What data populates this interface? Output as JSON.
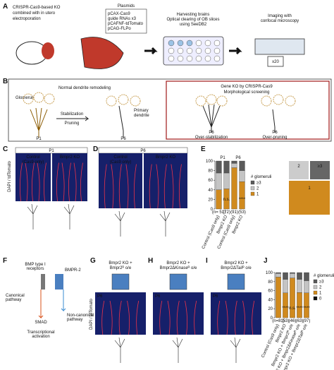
{
  "figure": {
    "A": {
      "label": "A",
      "caption": [
        "CRISPR-Cas9-based KO",
        "combined with in utero",
        "electroporation"
      ],
      "plasmids_title": "Plasmids",
      "plasmids": [
        "pCAX-Cas9",
        "guide RNAs x3",
        "pCAFNF-tdTomato",
        "pCAG-FLPo"
      ],
      "harvest": [
        "Harvesting brains",
        "Optical clearing of OB slices",
        "using SeeDB2"
      ],
      "imaging": [
        "Imaging with",
        "confocal microscopy"
      ],
      "objective": "x20"
    },
    "B": {
      "label": "B",
      "normal": "Normal dendrite remodeling",
      "glomeruli": "Glomeruli",
      "stabilization": "Stabilization",
      "pruning": "Pruning",
      "primary": [
        "Primary",
        "dendrite"
      ],
      "p1": "P1",
      "p6": "P6",
      "screen": [
        "Gene KO by CRISPR-Cas9",
        "Morphological screening"
      ],
      "stab_stage": "P6",
      "stab": "Over-stabilization",
      "prune_stage": "P6",
      "prune": "Over-pruning"
    },
    "C": {
      "label": "C",
      "stage": "P1",
      "control": [
        "Control",
        "(Cas9 only)"
      ],
      "ko": "Bmpr2 KO",
      "stain": "DAPI / tdTomato"
    },
    "D": {
      "label": "D",
      "stage": "P6",
      "control": [
        "Control",
        "(Cas9 only)"
      ],
      "ko": "Bmpr2 KO"
    },
    "E": {
      "label": "E",
      "schematic": [
        "2",
        "≥3",
        "1"
      ]
    },
    "F": {
      "label": "F",
      "receptors": [
        "BMP type I",
        "receptors"
      ],
      "bmpr2": "BMPR-2",
      "canonical": [
        "Canonical",
        "pathway"
      ],
      "noncanonical": [
        "Non-canonical",
        "pathway"
      ],
      "smad": "SMAD",
      "transcription": [
        "Transcriptional",
        "activation"
      ]
    },
    "G": {
      "label": "G",
      "title": [
        "Bmpr2 KO +",
        "Bmpr2ᴿ o/e"
      ],
      "stage": "P6",
      "stain": "DAPI / tdTomato"
    },
    "H": {
      "label": "H",
      "title": [
        "Bmpr2 KO +",
        "Bmpr2ΔKinaseᴿ o/e"
      ],
      "stage": "P6"
    },
    "I": {
      "label": "I",
      "title": [
        "Bmpr2 KO +",
        "Bmpr2ΔTailᴿ o/e"
      ],
      "stage": "P6"
    },
    "J": {
      "label": "J"
    }
  },
  "chart_data": [
    {
      "type": "bar",
      "stacked": true,
      "ylim": [
        0,
        100
      ],
      "yticks": [
        0,
        20,
        40,
        60,
        80,
        100
      ],
      "groups": [
        "P1",
        "P6"
      ],
      "categories": [
        "Control (Cas9 only)",
        "Bmpr2 KO",
        "Control (Cas9 only)",
        "Bmpr2 KO"
      ],
      "n_labels": [
        "(n= 51)",
        "(72)",
        "(91)",
        "(53)"
      ],
      "legend_title": "# glomeruli",
      "series": [
        {
          "name": "1",
          "color": "#d08a1e",
          "values": [
            40,
            42,
            86,
            57
          ]
        },
        {
          "name": "2",
          "color": "#c4c4c4",
          "values": [
            35,
            33,
            9,
            23
          ]
        },
        {
          "name": "≥3",
          "color": "#5a5a5a",
          "values": [
            25,
            25,
            5,
            20
          ]
        }
      ],
      "annotations": [
        "n.s.",
        "****"
      ]
    },
    {
      "type": "bar",
      "stacked": true,
      "ylim": [
        0,
        100
      ],
      "yticks": [
        0,
        20,
        40,
        60,
        80,
        100
      ],
      "categories": [
        "Control (Cas9 only)",
        "Bmpr2 KO",
        "Bmpr2 KO + Bmpr2ᴿ o/e",
        "Bmpr2 KO + Bmpr2ΔKinaseᴿ o/e",
        "Bmpr2 KO + Bmpr2ΔTailᴿ o/e"
      ],
      "n_labels": [
        "(n=81)",
        "(53)",
        "(46)",
        "(63)",
        "(97)"
      ],
      "legend_title": "# glomeruli",
      "series": [
        {
          "name": "0",
          "color": "#111111",
          "values": [
            0,
            0,
            0,
            0,
            0
          ]
        },
        {
          "name": "1",
          "color": "#d08a1e",
          "values": [
            90,
            55,
            88,
            56,
            55
          ]
        },
        {
          "name": "2",
          "color": "#c4c4c4",
          "values": [
            8,
            30,
            10,
            29,
            27
          ]
        },
        {
          "name": "≥3",
          "color": "#5a5a5a",
          "values": [
            2,
            15,
            2,
            15,
            18
          ]
        }
      ],
      "annotations": [
        "****",
        "n.s.",
        "****",
        "****"
      ]
    }
  ]
}
